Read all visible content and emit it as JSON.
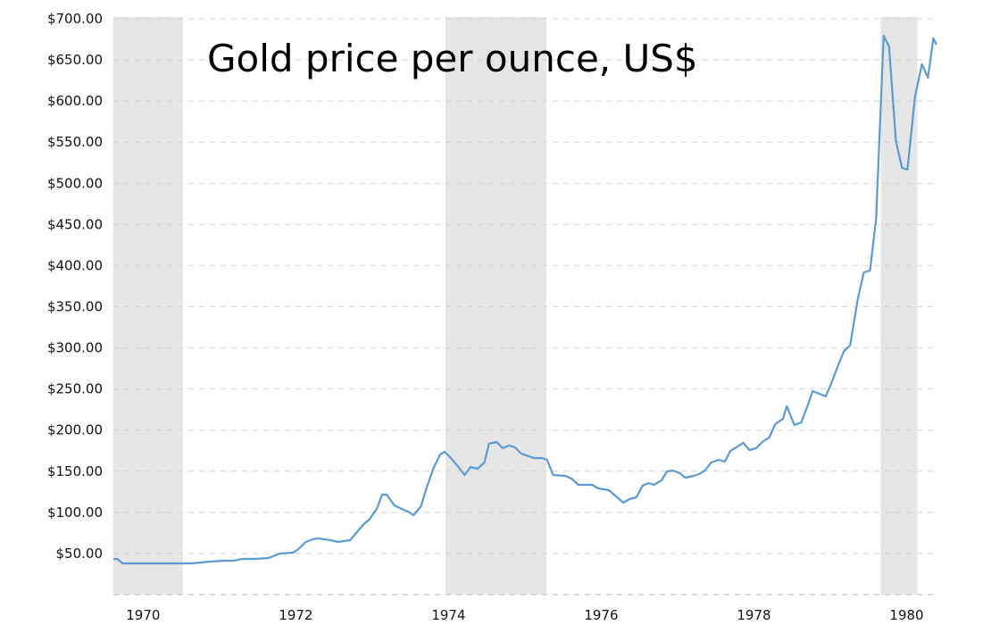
{
  "chart_data": {
    "type": "line",
    "title": "Gold price per ounce, US$",
    "xlabel": "",
    "ylabel": "",
    "xlim": [
      1969.61,
      1980.38
    ],
    "ylim": [
      0,
      700
    ],
    "y_ticks": [
      50,
      100,
      150,
      200,
      250,
      300,
      350,
      400,
      450,
      500,
      550,
      600,
      650,
      700
    ],
    "y_tick_labels": [
      "$50.00",
      "$100.00",
      "$150.00",
      "$200.00",
      "$250.00",
      "$300.00",
      "$350.00",
      "$400.00",
      "$450.00",
      "$500.00",
      "$550.00",
      "$600.00",
      "$650.00",
      "$700.00"
    ],
    "x_ticks": [
      1970,
      1972,
      1974,
      1976,
      1978,
      1980
    ],
    "x_tick_labels": [
      "1970",
      "1972",
      "1974",
      "1976",
      "1978",
      "1980"
    ],
    "grid": "horizontal dashed",
    "line_color": "#5b9bd5",
    "shade_color": "#e6e6e6",
    "shaded_periods": [
      [
        1969.61,
        1970.52
      ],
      [
        1973.96,
        1975.28
      ],
      [
        1979.66,
        1980.14
      ]
    ],
    "series": [
      {
        "x": [
          1969.61,
          1969.66,
          1969.73,
          1970.64,
          1970.76,
          1970.88,
          1971.05,
          1971.19,
          1971.29,
          1971.46,
          1971.64,
          1971.79,
          1971.96,
          1972.02,
          1972.13,
          1972.22,
          1972.3,
          1972.37,
          1972.45,
          1972.55,
          1972.71,
          1972.78,
          1972.89,
          1972.96,
          1973.06,
          1973.13,
          1973.19,
          1973.29,
          1973.36,
          1973.47,
          1973.54,
          1973.64,
          1973.71,
          1973.8,
          1973.89,
          1973.95,
          1974.03,
          1974.12,
          1974.21,
          1974.29,
          1974.38,
          1974.47,
          1974.53,
          1974.63,
          1974.71,
          1974.79,
          1974.87,
          1974.95,
          1975.05,
          1975.12,
          1975.22,
          1975.29,
          1975.37,
          1975.53,
          1975.61,
          1975.7,
          1975.78,
          1975.88,
          1975.96,
          1976.1,
          1976.29,
          1976.37,
          1976.46,
          1976.54,
          1976.62,
          1976.69,
          1976.79,
          1976.86,
          1976.94,
          1977.03,
          1977.1,
          1977.21,
          1977.28,
          1977.36,
          1977.44,
          1977.54,
          1977.62,
          1977.69,
          1977.77,
          1977.86,
          1977.94,
          1978.03,
          1978.11,
          1978.2,
          1978.28,
          1978.38,
          1978.43,
          1978.53,
          1978.62,
          1978.7,
          1978.77,
          1978.94,
          1979.02,
          1979.1,
          1979.18,
          1979.26,
          1979.36,
          1979.44,
          1979.52,
          1979.6,
          1979.7,
          1979.77,
          1979.86,
          1979.94,
          1980.01,
          1980.11,
          1980.2,
          1980.28,
          1980.35,
          1980.39
        ],
        "values": [
          43.4,
          43.4,
          38.0,
          38.0,
          39.1,
          40.2,
          41.2,
          41.2,
          43.4,
          43.4,
          44.5,
          49.9,
          51.0,
          54.3,
          64.0,
          67.3,
          68.4,
          67.3,
          66.2,
          64.0,
          66.2,
          73.8,
          85.7,
          91.2,
          104.2,
          121.5,
          121.5,
          108.5,
          105.3,
          100.9,
          96.6,
          107.4,
          129.1,
          153.0,
          170.4,
          173.6,
          166.0,
          156.3,
          145.4,
          155.2,
          153.0,
          160.6,
          183.4,
          185.6,
          178.0,
          181.2,
          179.1,
          171.5,
          168.2,
          166.0,
          166.0,
          163.9,
          145.4,
          144.3,
          141.1,
          133.5,
          133.5,
          133.5,
          129.1,
          127.0,
          111.8,
          116.1,
          118.3,
          132.4,
          135.7,
          133.5,
          138.9,
          149.8,
          150.8,
          147.6,
          142.2,
          144.3,
          146.5,
          150.8,
          160.6,
          163.9,
          161.7,
          174.7,
          179.1,
          184.5,
          175.8,
          178.0,
          185.6,
          191.0,
          207.3,
          213.8,
          229.0,
          206.2,
          209.4,
          229.0,
          247.4,
          240.9,
          258.3,
          277.8,
          296.3,
          302.8,
          359.2,
          391.8,
          393.9,
          456.9,
          679.3,
          666.3,
          551.3,
          518.7,
          516.6,
          605.5,
          644.6,
          628.3,
          676.1,
          668.5
        ]
      }
    ]
  }
}
